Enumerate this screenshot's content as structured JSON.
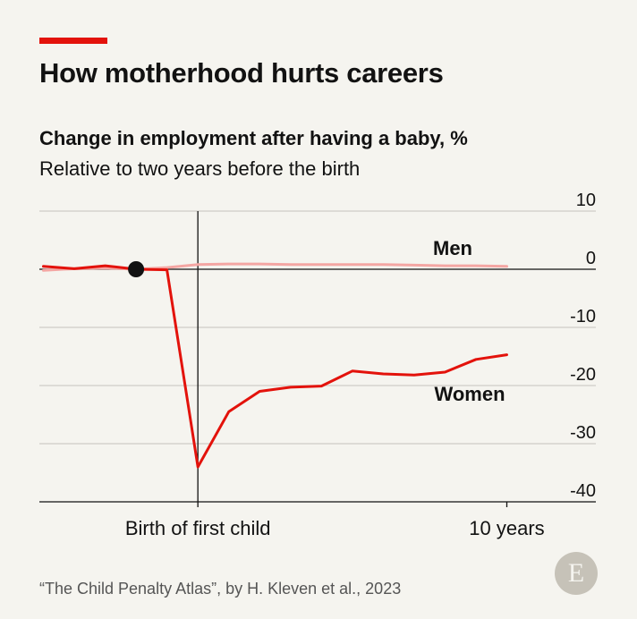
{
  "header": {
    "title": "How motherhood hurts careers",
    "subtitle": "Change in employment after having a baby, %",
    "subtitle2": "Relative to two years before the birth"
  },
  "footer": {
    "source": "“The Child Penalty Atlas”, by H. Kleven et al., 2023",
    "logo_letter": "E"
  },
  "colors": {
    "accent": "#e3120b",
    "women": "#e3120b",
    "men": "#f4a6a3",
    "background": "#f5f4ef",
    "grid": "#cfccc6",
    "axis": "#121212",
    "marker": "#121212"
  },
  "chart_data": {
    "type": "line",
    "title": "How motherhood hurts careers",
    "subtitle": "Change in employment after having a baby, %",
    "xlabel": "",
    "ylabel": "",
    "xlim": [
      -5,
      12
    ],
    "ylim": [
      -40,
      10
    ],
    "yticks": [
      10,
      0,
      -10,
      -20,
      -30,
      -40
    ],
    "ytick_labels": [
      "10",
      "0",
      "-10",
      "-20",
      "-30",
      "-40"
    ],
    "y_axis_side": "right",
    "x_markers": [
      {
        "x": 0,
        "label": "Birth of first child"
      },
      {
        "x": 10,
        "label": "10 years"
      }
    ],
    "reference_point": {
      "x": -2,
      "y": 0
    },
    "grid": true,
    "series": [
      {
        "name": "Men",
        "x": [
          -5,
          -4,
          -3,
          -2,
          -1,
          0,
          1,
          2,
          3,
          4,
          5,
          6,
          7,
          8,
          9,
          10
        ],
        "values": [
          -0.2,
          0.1,
          0.2,
          0,
          0.3,
          0.8,
          0.9,
          0.9,
          0.8,
          0.8,
          0.8,
          0.8,
          0.7,
          0.6,
          0.6,
          0.5
        ]
      },
      {
        "name": "Women",
        "x": [
          -5,
          -4,
          -3,
          -2,
          -1,
          0,
          1,
          2,
          3,
          4,
          5,
          6,
          7,
          8,
          9,
          10
        ],
        "values": [
          0.5,
          0.1,
          0.6,
          0,
          -0.1,
          -34,
          -24.5,
          -21,
          -20.3,
          -20.1,
          -17.5,
          -18,
          -18.2,
          -17.7,
          -15.5,
          -14.7
        ]
      }
    ]
  }
}
